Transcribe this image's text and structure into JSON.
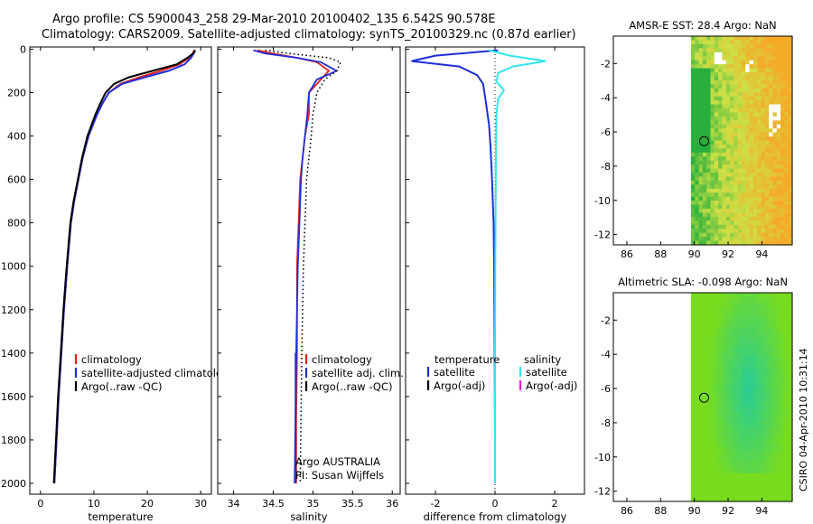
{
  "header": {
    "title_line1": "Argo profile: CS 5900043_258 29-Mar-2010 20100402_135 6.542S 90.578E",
    "title_line2": "Climatology: CARS2009. Satellite-adjusted climatology: synTS_20100329.nc (0.87d earlier)"
  },
  "footer_stamp": "CSIRO 04-Apr-2010 10:31:14",
  "colors": {
    "climatology": "#e8201c",
    "satellite": "#1f2fd6",
    "argo": "#000000",
    "salinity_sat": "#33e6ee",
    "argo_adj": "#e020e0"
  },
  "chart_data": [
    {
      "id": "temperature",
      "type": "line",
      "xlabel": "temperature",
      "ylabel": "depth",
      "xlim": [
        -2,
        32
      ],
      "ylim": [
        2050,
        -10
      ],
      "xticks": [
        0,
        10,
        20,
        30
      ],
      "yticks": [
        0,
        200,
        400,
        600,
        800,
        1000,
        1200,
        1400,
        1600,
        1800,
        2000
      ],
      "legend": {
        "placement": "lower-middle",
        "entries": [
          "climatology",
          "satellite-adjusted climatology",
          "Argo(..raw -QC)"
        ]
      },
      "series": [
        {
          "name": "climatology",
          "color_key": "climatology",
          "x": [
            28.8,
            28.5,
            27.8,
            26.0,
            22.5,
            18.5,
            15.0,
            12.8,
            11.6,
            10.6,
            9.0,
            7.9,
            7.1,
            6.3,
            5.7,
            5.0,
            4.4,
            3.9,
            3.4,
            3.0,
            2.6
          ],
          "y": [
            5,
            20,
            40,
            70,
            100,
            130,
            160,
            200,
            250,
            300,
            400,
            500,
            600,
            700,
            800,
            1000,
            1200,
            1400,
            1600,
            1800,
            2000
          ]
        },
        {
          "name": "satellite-adjusted climatology",
          "color_key": "satellite",
          "x": [
            28.9,
            28.7,
            28.2,
            27.0,
            24.0,
            19.5,
            15.3,
            12.8,
            11.6,
            10.6,
            9.0,
            7.9,
            7.1,
            6.3,
            5.7,
            5.0,
            4.4,
            3.9,
            3.4,
            3.0,
            2.6
          ],
          "y": [
            5,
            20,
            40,
            70,
            100,
            130,
            160,
            200,
            250,
            300,
            400,
            500,
            600,
            700,
            800,
            1000,
            1200,
            1400,
            1600,
            1800,
            2000
          ]
        },
        {
          "name": "Argo(..raw -QC)",
          "color_key": "argo",
          "x": [
            29.0,
            28.6,
            27.5,
            25.5,
            21.0,
            16.5,
            13.8,
            12.2,
            11.2,
            10.3,
            8.8,
            7.8,
            7.0,
            6.2,
            5.6,
            4.9,
            4.3,
            3.8,
            3.3,
            2.9,
            2.5
          ],
          "y": [
            5,
            20,
            40,
            70,
            100,
            130,
            160,
            200,
            250,
            300,
            400,
            500,
            600,
            700,
            800,
            1000,
            1200,
            1400,
            1600,
            1800,
            2000
          ]
        }
      ]
    },
    {
      "id": "salinity",
      "type": "line",
      "xlabel": "salinity",
      "ylabel": "depth",
      "xlim": [
        33.8,
        36.1
      ],
      "ylim": [
        2050,
        -10
      ],
      "xticks": [
        34,
        34.5,
        35,
        35.5,
        36
      ],
      "annotation_line1": "Argo AUSTRALIA",
      "annotation_line2": "PI: Susan Wijffels",
      "legend": {
        "placement": "lower-middle",
        "entries": [
          "climatology",
          "satellite adj. clim.",
          "Argo(..raw -QC)"
        ]
      },
      "series": [
        {
          "name": "climatology",
          "color_key": "climatology",
          "x": [
            34.3,
            34.5,
            34.8,
            35.05,
            35.2,
            35.1,
            34.95,
            34.95,
            34.9,
            34.87,
            34.84,
            34.82,
            34.8,
            34.8,
            34.8,
            34.79,
            34.79
          ],
          "y": [
            5,
            20,
            40,
            60,
            100,
            140,
            200,
            300,
            400,
            500,
            600,
            800,
            1000,
            1200,
            1400,
            1700,
            2000
          ]
        },
        {
          "name": "satellite adj. clim.",
          "color_key": "satellite",
          "x": [
            34.25,
            34.4,
            34.8,
            35.1,
            35.3,
            35.05,
            34.95,
            34.93,
            34.9,
            34.87,
            34.85,
            34.83,
            34.81,
            34.8,
            34.79,
            34.78,
            34.77
          ],
          "y": [
            5,
            20,
            40,
            60,
            100,
            140,
            200,
            300,
            400,
            500,
            600,
            800,
            1000,
            1200,
            1400,
            1700,
            2000
          ]
        },
        {
          "name": "Argo(..raw -QC)",
          "color_key": "argo",
          "style": "dotted",
          "x": [
            34.4,
            34.7,
            35.2,
            35.35,
            35.3,
            35.15,
            35.05,
            35.0,
            34.98,
            34.95,
            34.92,
            34.9,
            34.88,
            34.87,
            34.86,
            34.85,
            34.84
          ],
          "y": [
            5,
            20,
            40,
            60,
            100,
            140,
            200,
            300,
            400,
            500,
            600,
            800,
            1000,
            1200,
            1400,
            1700,
            2000
          ]
        }
      ]
    },
    {
      "id": "difference",
      "type": "line",
      "xlabel": "difference from climatology",
      "ylabel": "depth",
      "xlim": [
        -3,
        3
      ],
      "ylim": [
        2050,
        -10
      ],
      "xticks": [
        -2,
        0,
        2
      ],
      "legend": {
        "placement": "lower-middle",
        "temperature_header": "temperature",
        "salinity_header": "salinity",
        "temp_entries": [
          "satellite",
          "Argo(-adj)"
        ],
        "sal_entries": [
          "satellite",
          "Argo(-adj)"
        ]
      },
      "series": [
        {
          "name": "temperature satellite",
          "color_key": "satellite",
          "x": [
            0.1,
            -2.0,
            -2.8,
            -1.2,
            -0.6,
            -0.4,
            -0.3,
            -0.2,
            -0.15,
            -0.1,
            -0.05,
            -0.03,
            -0.02,
            -0.01,
            0.0,
            0.0
          ],
          "y": [
            5,
            30,
            55,
            80,
            120,
            160,
            250,
            350,
            450,
            600,
            800,
            1000,
            1200,
            1500,
            1800,
            2000
          ]
        },
        {
          "name": "salinity satellite",
          "color_key": "salinity_sat",
          "x": [
            -0.2,
            0.5,
            1.7,
            0.6,
            0.1,
            0.05,
            0.3,
            0.1,
            0.05,
            0.03,
            0.02,
            0.01,
            0.0,
            0.0,
            0.0
          ],
          "y": [
            5,
            30,
            55,
            80,
            110,
            150,
            190,
            230,
            300,
            450,
            700,
            1000,
            1400,
            1700,
            2000
          ]
        }
      ]
    },
    {
      "id": "sst_map",
      "type": "heatmap",
      "title": "AMSR-E SST: 28.4 Argo: NaN",
      "xticks": [
        86,
        88,
        90,
        92,
        94
      ],
      "yticks": [
        -2,
        -4,
        -6,
        -8,
        -10,
        -12
      ],
      "xlim": [
        85.2,
        95.8
      ],
      "ylim": [
        -12.6,
        -0.4
      ],
      "data_xlim": [
        89.8,
        95.8
      ],
      "marker": {
        "lon": 90.578,
        "lat": -6.542
      }
    },
    {
      "id": "sla_map",
      "type": "heatmap",
      "title": "Altimetric SLA: -0.098 Argo: NaN",
      "xticks": [
        86,
        88,
        90,
        92,
        94
      ],
      "yticks": [
        -2,
        -4,
        -6,
        -8,
        -10,
        -12
      ],
      "xlim": [
        85.2,
        95.8
      ],
      "ylim": [
        -12.6,
        -0.4
      ],
      "data_xlim": [
        89.8,
        95.8
      ],
      "marker": {
        "lon": 90.578,
        "lat": -6.542
      }
    }
  ]
}
